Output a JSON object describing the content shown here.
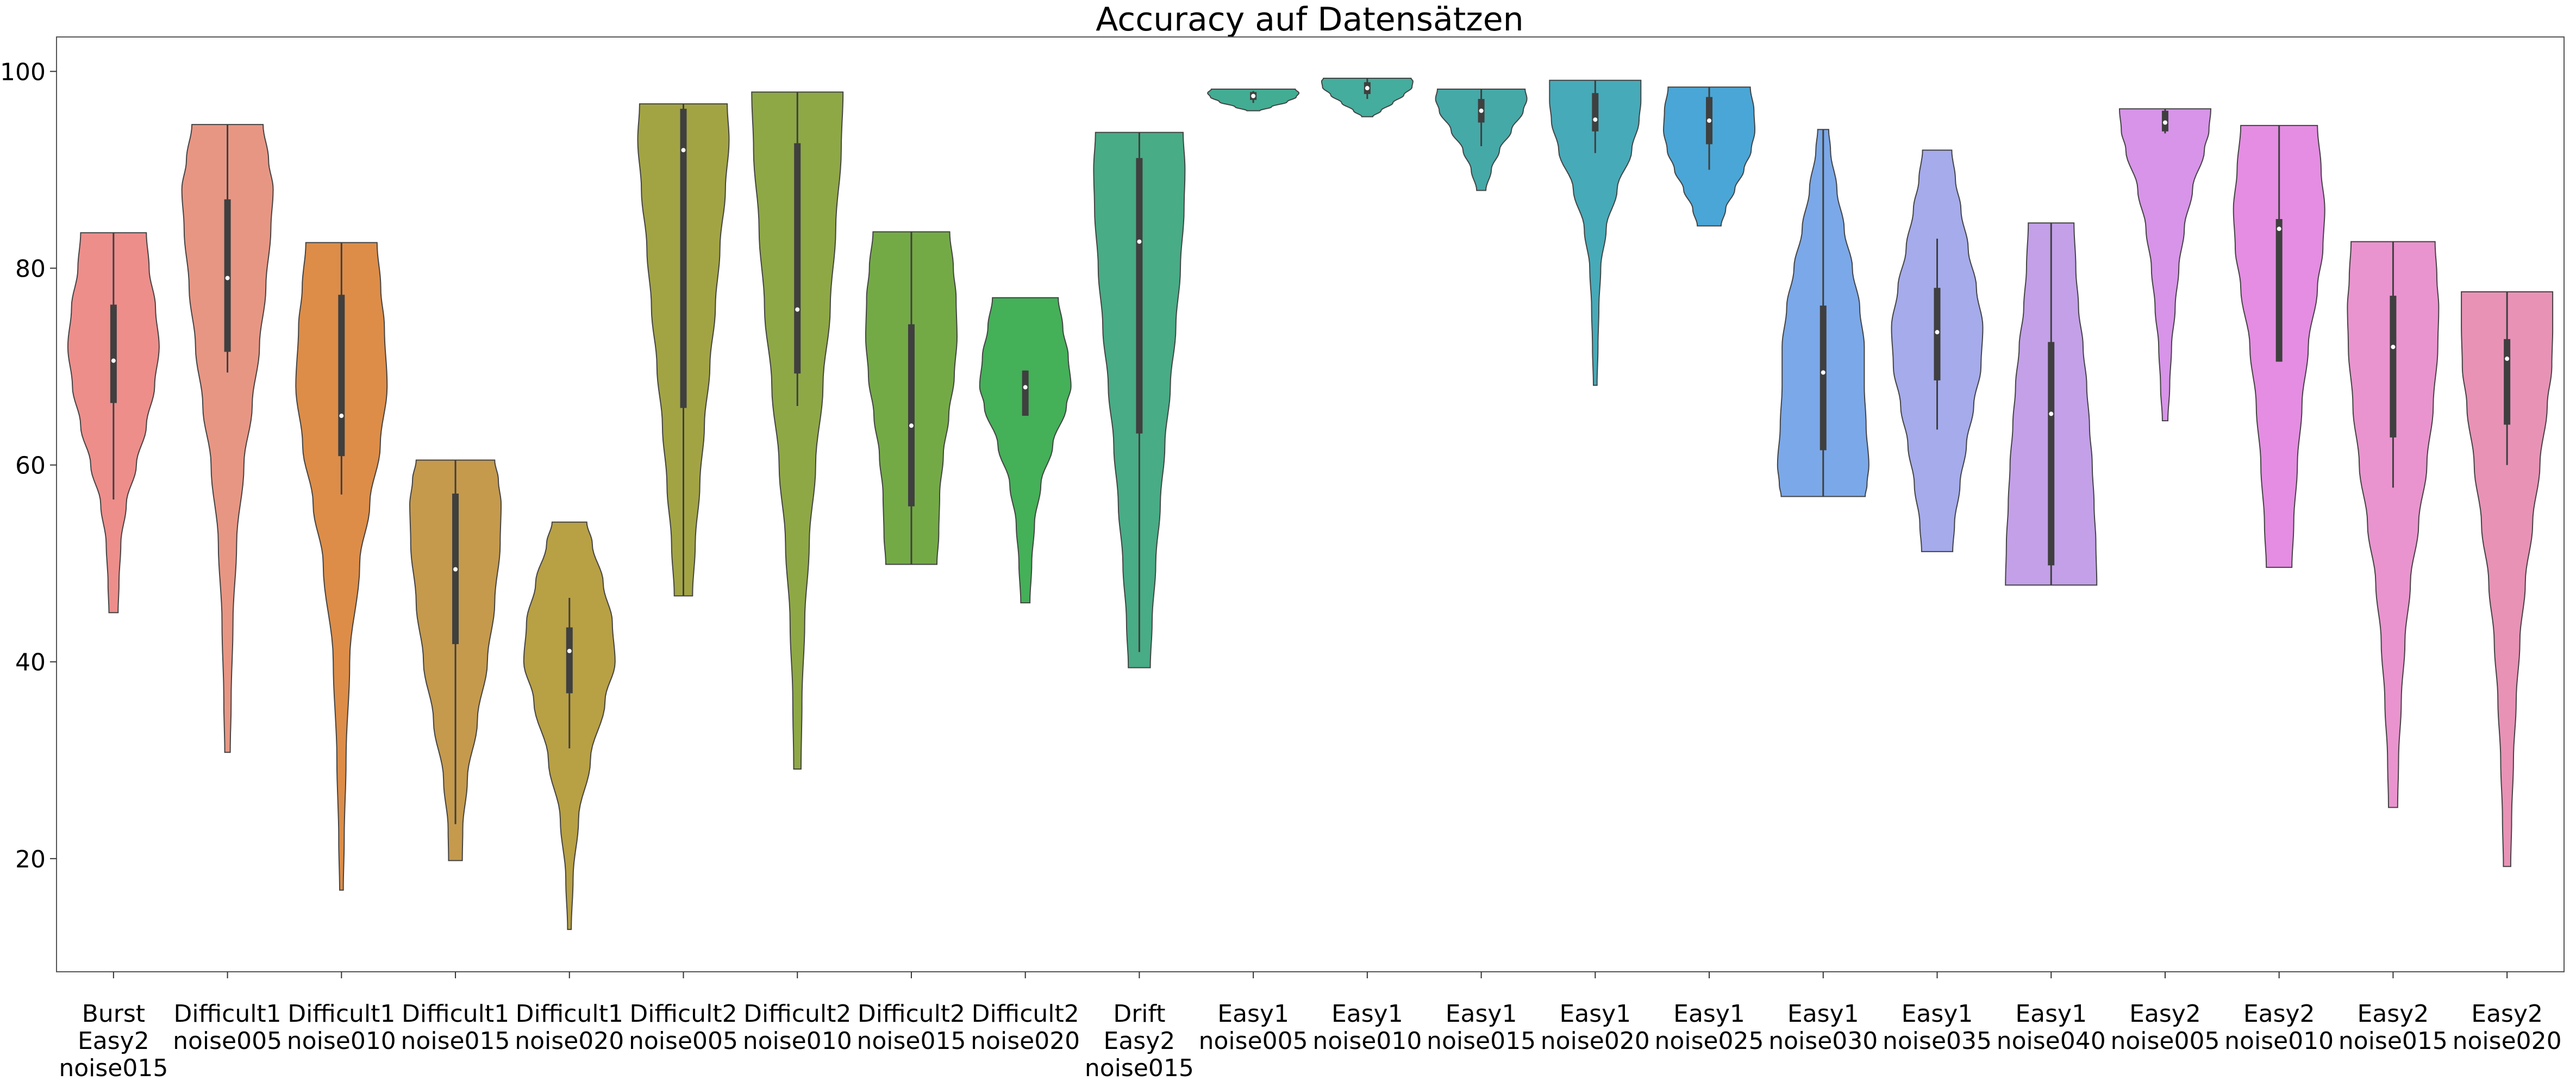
{
  "chart_data": {
    "type": "violin",
    "title": "Accuracy auf Datensätzen",
    "xlabel": "",
    "ylabel": "",
    "ylim": [
      8.5,
      103.5
    ],
    "yticks": [
      20,
      40,
      60,
      80,
      100
    ],
    "ytick_labels": [
      "20",
      "40",
      "60",
      "80",
      "100"
    ],
    "grid": false,
    "categories": [
      {
        "lines": [
          "Burst",
          "Easy2",
          "noise015"
        ],
        "min": 45,
        "max": 83.6,
        "q1": 66.3,
        "median": 70.6,
        "q3": 76.3,
        "wlo": 56.5,
        "whi": 83.6,
        "color": "#ED8E8B",
        "profile": [
          [
            45,
            0.1
          ],
          [
            48,
            0.12
          ],
          [
            52,
            0.16
          ],
          [
            56,
            0.28
          ],
          [
            60,
            0.5
          ],
          [
            64,
            0.72
          ],
          [
            68,
            0.9
          ],
          [
            72,
            1.0
          ],
          [
            76,
            0.92
          ],
          [
            80,
            0.78
          ],
          [
            83.6,
            0.72
          ]
        ]
      },
      {
        "lines": [
          "Difficult1",
          "noise005"
        ],
        "min": 30.8,
        "max": 94.6,
        "q1": 71.5,
        "median": 79.0,
        "q3": 87.0,
        "wlo": 69.4,
        "whi": 94.6,
        "color": "#E89684",
        "profile": [
          [
            30.8,
            0.06
          ],
          [
            36,
            0.08
          ],
          [
            44,
            0.12
          ],
          [
            52,
            0.2
          ],
          [
            60,
            0.36
          ],
          [
            66,
            0.54
          ],
          [
            72,
            0.7
          ],
          [
            78,
            0.84
          ],
          [
            84,
            0.95
          ],
          [
            88,
            1.0
          ],
          [
            91,
            0.9
          ],
          [
            94.6,
            0.78
          ]
        ]
      },
      {
        "lines": [
          "Difficult1",
          "noise010"
        ],
        "min": 16.8,
        "max": 82.6,
        "q1": 60.9,
        "median": 65.0,
        "q3": 77.3,
        "wlo": 57.0,
        "whi": 82.6,
        "color": "#DD8D48",
        "profile": [
          [
            16.8,
            0.04
          ],
          [
            22,
            0.06
          ],
          [
            30,
            0.1
          ],
          [
            40,
            0.18
          ],
          [
            50,
            0.4
          ],
          [
            56,
            0.62
          ],
          [
            62,
            0.85
          ],
          [
            68,
            1.0
          ],
          [
            74,
            0.94
          ],
          [
            78,
            0.86
          ],
          [
            82.6,
            0.78
          ]
        ]
      },
      {
        "lines": [
          "Difficult1",
          "noise015"
        ],
        "min": 19.8,
        "max": 60.5,
        "q1": 41.8,
        "median": 49.4,
        "q3": 57.1,
        "wlo": 23.5,
        "whi": 60.5,
        "color": "#C59A4D",
        "profile": [
          [
            19.8,
            0.15
          ],
          [
            23,
            0.16
          ],
          [
            28,
            0.26
          ],
          [
            34,
            0.48
          ],
          [
            40,
            0.7
          ],
          [
            46,
            0.86
          ],
          [
            52,
            0.98
          ],
          [
            56,
            1.0
          ],
          [
            58.5,
            0.94
          ],
          [
            60.5,
            0.86
          ]
        ]
      },
      {
        "lines": [
          "Difficult1",
          "noise020"
        ],
        "min": 12.8,
        "max": 54.2,
        "q1": 36.8,
        "median": 41.1,
        "q3": 43.5,
        "wlo": 31.2,
        "whi": 46.5,
        "color": "#B8A044",
        "profile": [
          [
            12.8,
            0.04
          ],
          [
            18,
            0.08
          ],
          [
            24,
            0.2
          ],
          [
            30,
            0.46
          ],
          [
            36,
            0.78
          ],
          [
            40,
            1.0
          ],
          [
            44,
            0.94
          ],
          [
            48,
            0.74
          ],
          [
            52,
            0.5
          ],
          [
            54.2,
            0.38
          ]
        ]
      },
      {
        "lines": [
          "Difficult2",
          "noise005"
        ],
        "min": 46.7,
        "max": 96.7,
        "q1": 65.8,
        "median": 92.0,
        "q3": 96.2,
        "wlo": 46.7,
        "whi": 96.7,
        "color": "#A2A444",
        "profile": [
          [
            46.7,
            0.2
          ],
          [
            52,
            0.26
          ],
          [
            58,
            0.36
          ],
          [
            64,
            0.46
          ],
          [
            70,
            0.58
          ],
          [
            76,
            0.7
          ],
          [
            82,
            0.8
          ],
          [
            88,
            0.92
          ],
          [
            93,
            1.0
          ],
          [
            96.7,
            0.96
          ]
        ]
      },
      {
        "lines": [
          "Difficult2",
          "noise010"
        ],
        "min": 29.1,
        "max": 97.9,
        "q1": 69.3,
        "median": 75.8,
        "q3": 92.7,
        "wlo": 66.0,
        "whi": 97.9,
        "color": "#8FA846",
        "profile": [
          [
            29.1,
            0.08
          ],
          [
            36,
            0.1
          ],
          [
            44,
            0.16
          ],
          [
            52,
            0.26
          ],
          [
            60,
            0.4
          ],
          [
            68,
            0.56
          ],
          [
            76,
            0.72
          ],
          [
            84,
            0.84
          ],
          [
            92,
            0.96
          ],
          [
            97.9,
            1.0
          ]
        ]
      },
      {
        "lines": [
          "Difficult2",
          "noise015"
        ],
        "min": 49.9,
        "max": 83.7,
        "q1": 55.8,
        "median": 64.0,
        "q3": 74.3,
        "wlo": 49.9,
        "whi": 83.7,
        "color": "#74AA46",
        "profile": [
          [
            49.9,
            0.56
          ],
          [
            53,
            0.6
          ],
          [
            57,
            0.62
          ],
          [
            61,
            0.7
          ],
          [
            65,
            0.82
          ],
          [
            69,
            0.94
          ],
          [
            73,
            1.0
          ],
          [
            77,
            0.98
          ],
          [
            80,
            0.92
          ],
          [
            83.7,
            0.84
          ]
        ]
      },
      {
        "lines": [
          "Difficult2",
          "noise020"
        ],
        "min": 46.0,
        "max": 77.0,
        "q1": 65.0,
        "median": 67.9,
        "q3": 69.6,
        "wlo": 65.0,
        "whi": 69.6,
        "color": "#44B058",
        "profile": [
          [
            46.0,
            0.1
          ],
          [
            50,
            0.14
          ],
          [
            54,
            0.2
          ],
          [
            58,
            0.34
          ],
          [
            62,
            0.6
          ],
          [
            66,
            0.9
          ],
          [
            68,
            1.0
          ],
          [
            71,
            0.94
          ],
          [
            74,
            0.82
          ],
          [
            77,
            0.72
          ]
        ]
      },
      {
        "lines": [
          "Drift",
          "Easy2",
          "noise015"
        ],
        "min": 39.4,
        "max": 93.8,
        "q1": 63.2,
        "median": 82.7,
        "q3": 91.2,
        "wlo": 41.0,
        "whi": 93.8,
        "color": "#48AC86",
        "profile": [
          [
            39.4,
            0.24
          ],
          [
            44,
            0.28
          ],
          [
            50,
            0.36
          ],
          [
            56,
            0.46
          ],
          [
            62,
            0.56
          ],
          [
            68,
            0.68
          ],
          [
            74,
            0.8
          ],
          [
            80,
            0.9
          ],
          [
            86,
            0.98
          ],
          [
            90,
            1.0
          ],
          [
            93.8,
            0.96
          ]
        ]
      },
      {
        "lines": [
          "Easy1",
          "noise005"
        ],
        "min": 96.0,
        "max": 98.2,
        "q1": 97.1,
        "median": 97.5,
        "q3": 97.9,
        "wlo": 96.8,
        "whi": 98.0,
        "color": "#42AD93",
        "profile": [
          [
            96.0,
            0.14
          ],
          [
            96.4,
            0.4
          ],
          [
            96.9,
            0.74
          ],
          [
            97.4,
            0.94
          ],
          [
            97.8,
            1.0
          ],
          [
            98.2,
            0.92
          ]
        ]
      },
      {
        "lines": [
          "Easy1",
          "noise010"
        ],
        "min": 95.4,
        "max": 99.3,
        "q1": 97.7,
        "median": 98.3,
        "q3": 98.9,
        "wlo": 97.2,
        "whi": 99.3,
        "color": "#44AD9D",
        "profile": [
          [
            95.4,
            0.12
          ],
          [
            96.0,
            0.3
          ],
          [
            96.8,
            0.56
          ],
          [
            97.6,
            0.8
          ],
          [
            98.4,
            0.98
          ],
          [
            99.0,
            1.0
          ],
          [
            99.3,
            0.96
          ]
        ]
      },
      {
        "lines": [
          "Easy1",
          "noise015"
        ],
        "min": 87.9,
        "max": 98.2,
        "q1": 94.8,
        "median": 96.0,
        "q3": 97.2,
        "wlo": 92.4,
        "whi": 98.2,
        "color": "#45A9A8",
        "profile": [
          [
            87.9,
            0.1
          ],
          [
            90,
            0.22
          ],
          [
            92,
            0.4
          ],
          [
            94,
            0.66
          ],
          [
            96,
            0.92
          ],
          [
            97.2,
            1.0
          ],
          [
            98.2,
            0.96
          ]
        ]
      },
      {
        "lines": [
          "Easy1",
          "noise020"
        ],
        "min": 68.1,
        "max": 99.1,
        "q1": 93.9,
        "median": 95.1,
        "q3": 97.8,
        "wlo": 91.7,
        "whi": 99.1,
        "color": "#47AAB8",
        "profile": [
          [
            68.1,
            0.04
          ],
          [
            72,
            0.06
          ],
          [
            76,
            0.08
          ],
          [
            80,
            0.12
          ],
          [
            84,
            0.24
          ],
          [
            88,
            0.48
          ],
          [
            92,
            0.8
          ],
          [
            95,
            0.96
          ],
          [
            97,
            1.0
          ],
          [
            99.1,
            1.0
          ]
        ]
      },
      {
        "lines": [
          "Easy1",
          "noise025"
        ],
        "min": 84.3,
        "max": 98.4,
        "q1": 92.6,
        "median": 95.0,
        "q3": 97.4,
        "wlo": 90.0,
        "whi": 98.4,
        "color": "#4AA6D6",
        "profile": [
          [
            84.3,
            0.26
          ],
          [
            86,
            0.36
          ],
          [
            88,
            0.56
          ],
          [
            90,
            0.76
          ],
          [
            92,
            0.92
          ],
          [
            94,
            1.0
          ],
          [
            96,
            0.98
          ],
          [
            98.4,
            0.9
          ]
        ]
      },
      {
        "lines": [
          "Easy1",
          "noise030"
        ],
        "min": 56.8,
        "max": 94.1,
        "q1": 61.5,
        "median": 69.4,
        "q3": 76.2,
        "wlo": 56.8,
        "whi": 94.1,
        "color": "#7BA8E8",
        "profile": [
          [
            56.8,
            0.92
          ],
          [
            58,
            0.96
          ],
          [
            60,
            1.0
          ],
          [
            64,
            0.94
          ],
          [
            68,
            0.9
          ],
          [
            72,
            0.9
          ],
          [
            76,
            0.8
          ],
          [
            80,
            0.64
          ],
          [
            84,
            0.46
          ],
          [
            88,
            0.3
          ],
          [
            92,
            0.16
          ],
          [
            94.1,
            0.12
          ]
        ]
      },
      {
        "lines": [
          "Easy1",
          "noise035"
        ],
        "min": 51.2,
        "max": 92.0,
        "q1": 68.6,
        "median": 73.5,
        "q3": 78.0,
        "wlo": 63.6,
        "whi": 83.0,
        "color": "#A5ABEB",
        "profile": [
          [
            51.2,
            0.34
          ],
          [
            54,
            0.38
          ],
          [
            58,
            0.5
          ],
          [
            62,
            0.64
          ],
          [
            66,
            0.8
          ],
          [
            70,
            0.96
          ],
          [
            74,
            1.0
          ],
          [
            78,
            0.86
          ],
          [
            82,
            0.68
          ],
          [
            86,
            0.52
          ],
          [
            89,
            0.4
          ],
          [
            92,
            0.32
          ]
        ]
      },
      {
        "lines": [
          "Easy1",
          "noise040"
        ],
        "min": 47.8,
        "max": 84.6,
        "q1": 49.8,
        "median": 65.2,
        "q3": 72.5,
        "wlo": 47.8,
        "whi": 84.6,
        "color": "#C3A0E8",
        "profile": [
          [
            47.8,
            1.0
          ],
          [
            52,
            0.98
          ],
          [
            56,
            0.94
          ],
          [
            60,
            0.9
          ],
          [
            64,
            0.84
          ],
          [
            68,
            0.78
          ],
          [
            72,
            0.7
          ],
          [
            76,
            0.6
          ],
          [
            80,
            0.54
          ],
          [
            84.6,
            0.5
          ]
        ]
      },
      {
        "lines": [
          "Easy2",
          "noise005"
        ],
        "min": 64.5,
        "max": 96.2,
        "q1": 93.9,
        "median": 94.8,
        "q3": 96.0,
        "wlo": 93.7,
        "whi": 96.2,
        "color": "#D794E8",
        "profile": [
          [
            64.5,
            0.06
          ],
          [
            68,
            0.1
          ],
          [
            72,
            0.14
          ],
          [
            76,
            0.22
          ],
          [
            80,
            0.3
          ],
          [
            84,
            0.42
          ],
          [
            88,
            0.6
          ],
          [
            92,
            0.86
          ],
          [
            94,
            0.96
          ],
          [
            96.2,
            1.0
          ]
        ]
      },
      {
        "lines": [
          "Easy2",
          "noise010"
        ],
        "min": 49.6,
        "max": 94.5,
        "q1": 70.5,
        "median": 84.0,
        "q3": 85.0,
        "wlo": 70.5,
        "whi": 94.5,
        "color": "#E48DE2",
        "profile": [
          [
            49.6,
            0.28
          ],
          [
            54,
            0.32
          ],
          [
            60,
            0.4
          ],
          [
            66,
            0.5
          ],
          [
            72,
            0.64
          ],
          [
            78,
            0.84
          ],
          [
            82,
            0.96
          ],
          [
            86,
            1.0
          ],
          [
            90,
            0.92
          ],
          [
            94.5,
            0.84
          ]
        ]
      },
      {
        "lines": [
          "Easy2",
          "noise015"
        ],
        "min": 25.2,
        "max": 82.7,
        "q1": 62.8,
        "median": 72.0,
        "q3": 77.2,
        "wlo": 57.7,
        "whi": 82.7,
        "color": "#E994CE",
        "profile": [
          [
            25.2,
            0.1
          ],
          [
            30,
            0.12
          ],
          [
            36,
            0.18
          ],
          [
            42,
            0.26
          ],
          [
            48,
            0.38
          ],
          [
            54,
            0.56
          ],
          [
            60,
            0.74
          ],
          [
            66,
            0.88
          ],
          [
            72,
            0.98
          ],
          [
            76,
            1.0
          ],
          [
            79,
            0.96
          ],
          [
            82.7,
            0.92
          ]
        ]
      },
      {
        "lines": [
          "Easy2",
          "noise020"
        ],
        "min": 19.2,
        "max": 77.6,
        "q1": 64.1,
        "median": 70.8,
        "q3": 72.8,
        "wlo": 60.0,
        "whi": 77.6,
        "color": "#E892B6",
        "profile": [
          [
            19.2,
            0.08
          ],
          [
            24,
            0.1
          ],
          [
            30,
            0.14
          ],
          [
            36,
            0.2
          ],
          [
            42,
            0.28
          ],
          [
            48,
            0.4
          ],
          [
            54,
            0.56
          ],
          [
            60,
            0.72
          ],
          [
            66,
            0.88
          ],
          [
            70,
            0.98
          ],
          [
            74,
            1.0
          ],
          [
            77.6,
            1.0
          ]
        ]
      }
    ]
  }
}
